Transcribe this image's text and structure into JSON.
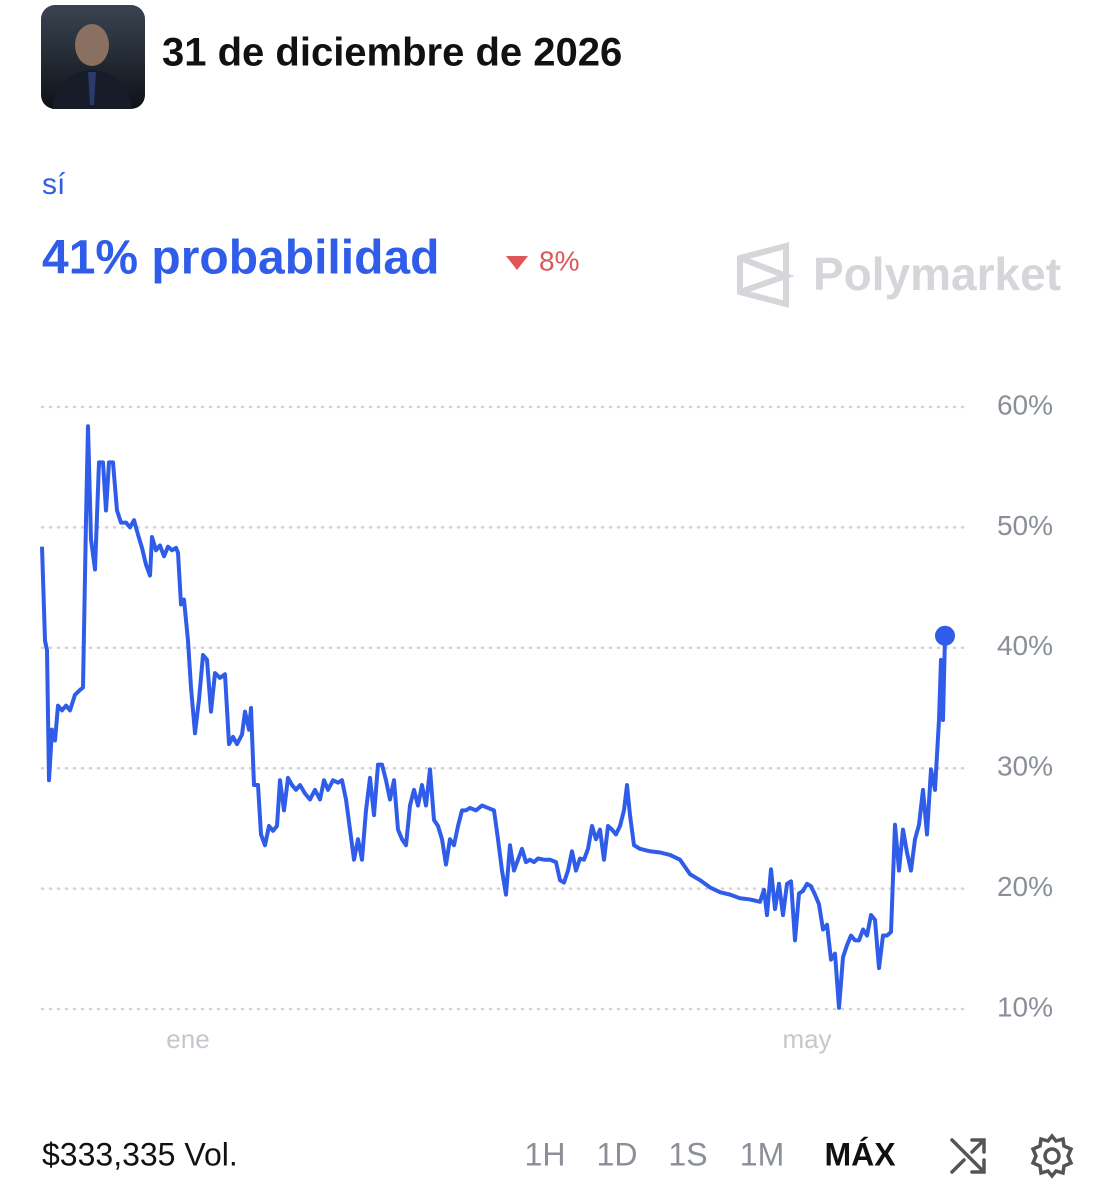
{
  "header": {
    "title": "31 de diciembre de 2026"
  },
  "outcome": {
    "label": "sí",
    "probability": "41% probabilidad",
    "change": "8%"
  },
  "brand": "Polymarket",
  "chart_data": {
    "type": "line",
    "color": "#2f5ce8",
    "x": [
      0,
      3,
      5,
      7,
      10,
      13,
      16,
      20,
      24,
      28,
      33,
      38,
      41,
      44,
      46,
      49,
      53,
      57,
      61,
      64,
      67,
      71,
      75,
      79,
      84,
      88,
      92,
      96,
      100,
      104,
      108,
      110,
      114,
      118,
      122,
      126,
      130,
      134,
      136,
      139,
      142,
      146,
      149,
      153,
      157,
      161,
      165,
      169,
      173,
      178,
      183,
      187,
      191,
      195,
      200,
      203,
      207,
      209,
      212,
      216,
      219,
      223,
      227,
      231,
      235,
      238,
      242,
      246,
      250,
      254,
      258,
      263,
      268,
      273,
      278,
      282,
      286,
      291,
      296,
      300,
      304,
      308,
      312,
      316,
      320,
      324,
      328,
      332,
      336,
      340,
      344,
      348,
      352,
      356,
      360,
      364,
      368,
      372,
      376,
      380,
      384,
      388,
      392,
      396,
      400,
      404,
      408,
      412,
      416,
      420,
      424,
      428,
      434,
      440,
      446,
      452,
      456,
      460,
      464,
      468,
      472,
      476,
      480,
      484,
      488,
      492,
      496,
      502,
      508,
      514,
      518,
      522,
      526,
      530,
      534,
      538,
      542,
      546,
      550,
      554,
      558,
      562,
      566,
      570,
      574,
      578,
      582,
      585,
      588,
      592,
      598,
      608,
      618,
      628,
      638,
      648,
      658,
      668,
      678,
      688,
      698,
      708,
      718,
      722,
      725,
      729,
      733,
      737,
      741,
      745,
      749,
      753,
      757,
      761,
      765,
      769,
      773,
      777,
      781,
      785,
      789,
      793,
      797,
      801,
      805,
      809,
      813,
      817,
      821,
      825,
      829,
      833,
      837,
      841,
      845,
      849,
      853,
      857,
      861,
      865,
      869,
      873,
      877,
      881,
      885,
      889,
      893,
      897,
      899,
      901,
      903
    ],
    "values": [
      48.4,
      40.6,
      39.8,
      29.0,
      33.2,
      32.3,
      35.2,
      34.8,
      35.2,
      34.8,
      36.1,
      36.5,
      36.7,
      50.6,
      58.4,
      49.0,
      46.5,
      55.4,
      55.4,
      51.4,
      55.4,
      55.4,
      51.4,
      50.4,
      50.4,
      50.0,
      50.6,
      49.4,
      48.3,
      46.9,
      46.0,
      49.2,
      48.1,
      48.5,
      47.6,
      48.4,
      48.1,
      48.3,
      47.9,
      43.6,
      44.0,
      40.6,
      36.7,
      32.9,
      35.7,
      39.4,
      39.0,
      34.7,
      37.9,
      37.5,
      37.8,
      32.0,
      32.6,
      32.0,
      32.8,
      34.7,
      33.2,
      35.0,
      28.6,
      28.6,
      24.5,
      23.6,
      25.2,
      24.8,
      25.2,
      29.0,
      26.5,
      29.2,
      28.6,
      28.2,
      28.6,
      27.9,
      27.4,
      28.2,
      27.4,
      29.0,
      28.2,
      29.0,
      28.8,
      29.0,
      27.4,
      24.9,
      22.4,
      24.1,
      22.4,
      26.5,
      29.2,
      26.1,
      30.3,
      30.3,
      29.0,
      27.4,
      29.0,
      24.9,
      24.1,
      23.6,
      26.9,
      28.2,
      26.9,
      28.6,
      26.9,
      29.9,
      25.7,
      25.2,
      24.1,
      22.0,
      24.1,
      23.6,
      25.2,
      26.5,
      26.5,
      26.7,
      26.5,
      26.9,
      26.7,
      26.5,
      24.1,
      21.5,
      19.5,
      23.6,
      21.5,
      22.4,
      23.3,
      22.2,
      22.4,
      22.2,
      22.5,
      22.4,
      22.4,
      22.2,
      20.7,
      20.5,
      21.5,
      23.1,
      21.5,
      22.5,
      22.4,
      23.3,
      25.2,
      24.1,
      24.9,
      22.4,
      25.2,
      24.9,
      24.5,
      25.2,
      26.5,
      28.6,
      26.1,
      23.6,
      23.3,
      23.1,
      23.0,
      22.8,
      22.4,
      21.2,
      20.7,
      20.1,
      19.7,
      19.5,
      19.2,
      19.1,
      18.9,
      19.9,
      17.8,
      21.6,
      18.3,
      20.4,
      17.8,
      20.4,
      20.6,
      15.7,
      19.6,
      19.8,
      20.4,
      20.2,
      19.5,
      18.7,
      16.6,
      17.0,
      14.1,
      14.6,
      10.1,
      14.3,
      15.3,
      16.1,
      15.7,
      15.7,
      16.6,
      16.1,
      17.8,
      17.4,
      13.4,
      16.1,
      16.1,
      16.4,
      25.3,
      21.5,
      24.9,
      23.0,
      21.5,
      24.1,
      25.3,
      28.2,
      24.5,
      29.9,
      28.2,
      34.0,
      39.0,
      34.0,
      41.0
    ],
    "xlim": [
      0,
      903
    ],
    "ylim": [
      10,
      60
    ],
    "xticks": [
      {
        "value": 146,
        "label": "ene"
      },
      {
        "value": 765,
        "label": "may"
      }
    ],
    "yticks": [
      {
        "value": 60,
        "label": "60%"
      },
      {
        "value": 50,
        "label": "50%"
      },
      {
        "value": 40,
        "label": "40%"
      },
      {
        "value": 30,
        "label": "30%"
      },
      {
        "value": 20,
        "label": "20%"
      },
      {
        "value": 10,
        "label": "10%"
      }
    ],
    "grid": true
  },
  "footer": {
    "volume": "$333,335 Vol.",
    "ranges": [
      "1H",
      "1D",
      "1S",
      "1M",
      "MÁX"
    ]
  }
}
